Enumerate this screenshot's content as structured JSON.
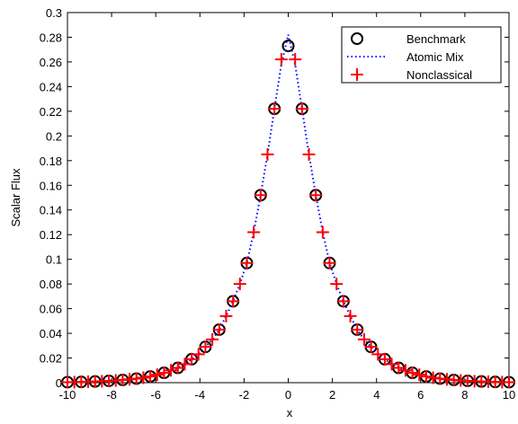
{
  "chart_data": {
    "type": "line",
    "xlabel": "x",
    "ylabel": "Scalar Flux",
    "xlim": [
      -10,
      10
    ],
    "xticks": [
      -10,
      -8,
      -6,
      -4,
      -2,
      0,
      2,
      4,
      6,
      8,
      10
    ],
    "ylim": [
      0,
      0.3
    ],
    "yticks": [
      0,
      0.02,
      0.04,
      0.06,
      0.08,
      0.1,
      0.12,
      0.14,
      0.16,
      0.18,
      0.2,
      0.22,
      0.24,
      0.26,
      0.28,
      0.3
    ],
    "legend": "upper right",
    "series": [
      {
        "name": "Benchmark",
        "color": "#000000",
        "marker": "circle",
        "x": [
          -10,
          -9.375,
          -8.75,
          -8.125,
          -7.5,
          -6.875,
          -6.25,
          -5.625,
          -5,
          -4.375,
          -3.75,
          -3.125,
          -2.5,
          -1.875,
          -1.25,
          -0.625,
          0,
          0.625,
          1.25,
          1.875,
          2.5,
          3.125,
          3.75,
          4.375,
          5,
          5.625,
          6.25,
          6.875,
          7.5,
          8.125,
          8.75,
          9.375,
          10
        ],
        "values": [
          0.0004,
          0.0006,
          0.001,
          0.0015,
          0.0022,
          0.0033,
          0.005,
          0.008,
          0.012,
          0.019,
          0.029,
          0.043,
          0.066,
          0.097,
          0.152,
          0.222,
          0.273,
          0.222,
          0.152,
          0.097,
          0.066,
          0.043,
          0.029,
          0.019,
          0.012,
          0.008,
          0.005,
          0.0033,
          0.0022,
          0.0015,
          0.001,
          0.0006,
          0.0004
        ]
      },
      {
        "name": "Atomic Mix",
        "color": "#0000ff",
        "marker": "dotted",
        "x": [
          -10,
          -9.6875,
          -9.375,
          -9.0625,
          -8.75,
          -8.4375,
          -8.125,
          -7.8125,
          -7.5,
          -7.1875,
          -6.875,
          -6.5625,
          -6.25,
          -5.9375,
          -5.625,
          -5.3125,
          -5,
          -4.6875,
          -4.375,
          -4.0625,
          -3.75,
          -3.4375,
          -3.125,
          -2.8125,
          -2.5,
          -2.1875,
          -1.875,
          -1.5625,
          -1.25,
          -0.9375,
          -0.625,
          -0.3125,
          0,
          0.3125,
          0.625,
          0.9375,
          1.25,
          1.5625,
          1.875,
          2.1875,
          2.5,
          2.8125,
          3.125,
          3.4375,
          3.75,
          4.0625,
          4.375,
          4.6875,
          5,
          5.3125,
          5.625,
          5.9375,
          6.25,
          6.5625,
          6.875,
          7.1875,
          7.5,
          7.8125,
          8.125,
          8.4375,
          8.75,
          9.0625,
          9.375,
          9.6875,
          10
        ],
        "values": [
          0.0004,
          0.0005,
          0.0006,
          0.0008,
          0.001,
          0.0012,
          0.0015,
          0.0018,
          0.0022,
          0.0027,
          0.0033,
          0.004,
          0.005,
          0.0065,
          0.008,
          0.01,
          0.012,
          0.015,
          0.019,
          0.023,
          0.029,
          0.035,
          0.043,
          0.054,
          0.066,
          0.08,
          0.097,
          0.122,
          0.152,
          0.185,
          0.222,
          0.258,
          0.282,
          0.258,
          0.222,
          0.185,
          0.152,
          0.122,
          0.097,
          0.08,
          0.066,
          0.054,
          0.043,
          0.035,
          0.029,
          0.023,
          0.019,
          0.015,
          0.012,
          0.01,
          0.008,
          0.0065,
          0.005,
          0.004,
          0.0033,
          0.0027,
          0.0022,
          0.0018,
          0.0015,
          0.0012,
          0.001,
          0.0008,
          0.0006,
          0.0005,
          0.0004
        ]
      },
      {
        "name": "Nonclassical",
        "color": "#ff0000",
        "marker": "plus",
        "x": [
          -10,
          -9.6875,
          -9.375,
          -9.0625,
          -8.75,
          -8.4375,
          -8.125,
          -7.8125,
          -7.5,
          -7.1875,
          -6.875,
          -6.5625,
          -6.25,
          -5.9375,
          -5.625,
          -5.3125,
          -5,
          -4.6875,
          -4.375,
          -4.0625,
          -3.75,
          -3.4375,
          -3.125,
          -2.8125,
          -2.5,
          -2.1875,
          -1.875,
          -1.5625,
          -1.25,
          -0.9375,
          -0.625,
          -0.3125,
          0.3125,
          0.625,
          0.9375,
          1.25,
          1.5625,
          1.875,
          2.1875,
          2.5,
          2.8125,
          3.125,
          3.4375,
          3.75,
          4.0625,
          4.375,
          4.6875,
          5,
          5.3125,
          5.625,
          5.9375,
          6.25,
          6.5625,
          6.875,
          7.1875,
          7.5,
          7.8125,
          8.125,
          8.4375,
          8.75,
          9.0625,
          9.375,
          9.6875,
          10
        ],
        "values": [
          0.0004,
          0.0005,
          0.0006,
          0.0008,
          0.001,
          0.0012,
          0.0015,
          0.0018,
          0.0022,
          0.0027,
          0.0033,
          0.004,
          0.005,
          0.0065,
          0.008,
          0.01,
          0.012,
          0.015,
          0.019,
          0.023,
          0.029,
          0.035,
          0.043,
          0.054,
          0.066,
          0.08,
          0.097,
          0.122,
          0.152,
          0.185,
          0.222,
          0.262,
          0.262,
          0.222,
          0.185,
          0.152,
          0.122,
          0.097,
          0.08,
          0.066,
          0.054,
          0.043,
          0.035,
          0.029,
          0.023,
          0.019,
          0.015,
          0.012,
          0.01,
          0.008,
          0.0065,
          0.005,
          0.004,
          0.0033,
          0.0027,
          0.0022,
          0.0018,
          0.0015,
          0.0012,
          0.001,
          0.0008,
          0.0006,
          0.0005,
          0.0004
        ]
      }
    ]
  }
}
